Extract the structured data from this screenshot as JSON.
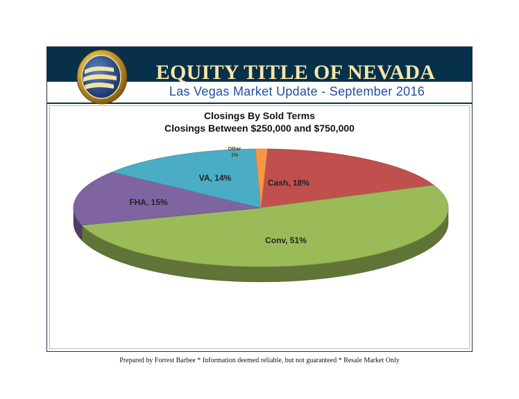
{
  "header": {
    "company": "EQUITY TITLE OF NEVADA",
    "subtitle": "Las Vegas Market Update - September 2016"
  },
  "footer": {
    "note": "Prepared by Forrest Barbee * Information deemed reliable, but not guaranteed * Resale Market Only"
  },
  "colors": {
    "banner": "#07304a",
    "company_text": "#f5e6a8",
    "subtitle_text": "#1f4ea0"
  },
  "chart_data": {
    "type": "pie",
    "title": "Closings By Sold Terms",
    "subtitle": "Closings Between $250,000 and $750,000",
    "slices": [
      {
        "label": "Cash",
        "value": 18,
        "display": "Cash, 18%",
        "color": "#c0504d"
      },
      {
        "label": "Conv",
        "value": 51,
        "display": "Conv, 51%",
        "color": "#9bbb59"
      },
      {
        "label": "FHA",
        "value": 15,
        "display": "FHA, 15%",
        "color": "#8064a2"
      },
      {
        "label": "VA",
        "value": 14,
        "display": "VA, 14%",
        "color": "#4bacc6"
      },
      {
        "label": "Other",
        "value": 1,
        "display": "Other 1%",
        "color": "#f79646"
      }
    ],
    "three_d": true,
    "legend": "none"
  }
}
